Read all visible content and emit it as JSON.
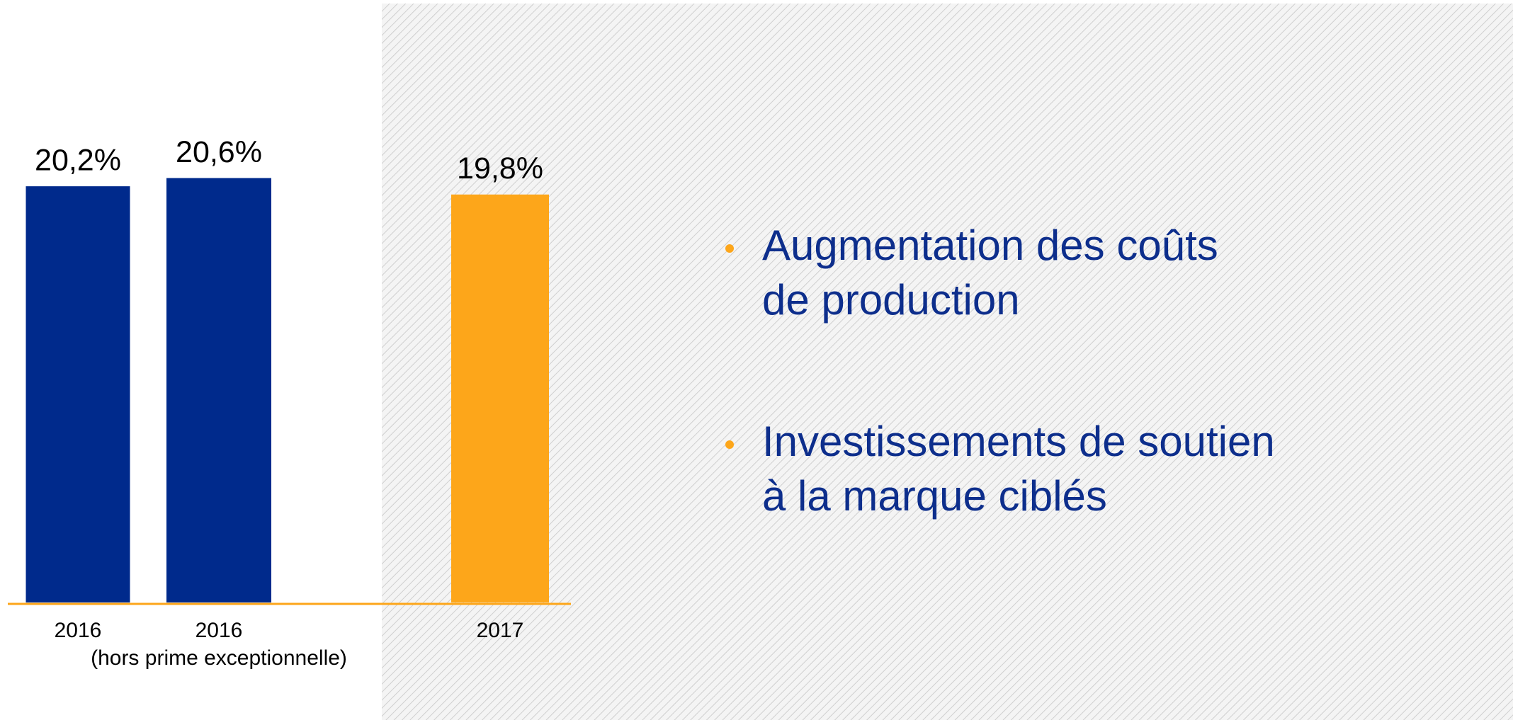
{
  "chart_data": {
    "type": "bar",
    "categories": [
      "2016",
      "2016",
      "2017"
    ],
    "annotation": "(hors prime exceptionnelle)",
    "values": [
      20.2,
      20.6,
      19.8
    ],
    "value_labels": [
      "20,2%",
      "20,6%",
      "19,8%"
    ],
    "colors": [
      "#002a8c",
      "#002a8c",
      "#fda61a"
    ],
    "ylim": [
      0,
      29
    ],
    "bullets": [
      [
        "Augmentation des coûts",
        "de production"
      ],
      [
        "Investissements de soutien",
        "à la marque ciblés"
      ]
    ]
  }
}
